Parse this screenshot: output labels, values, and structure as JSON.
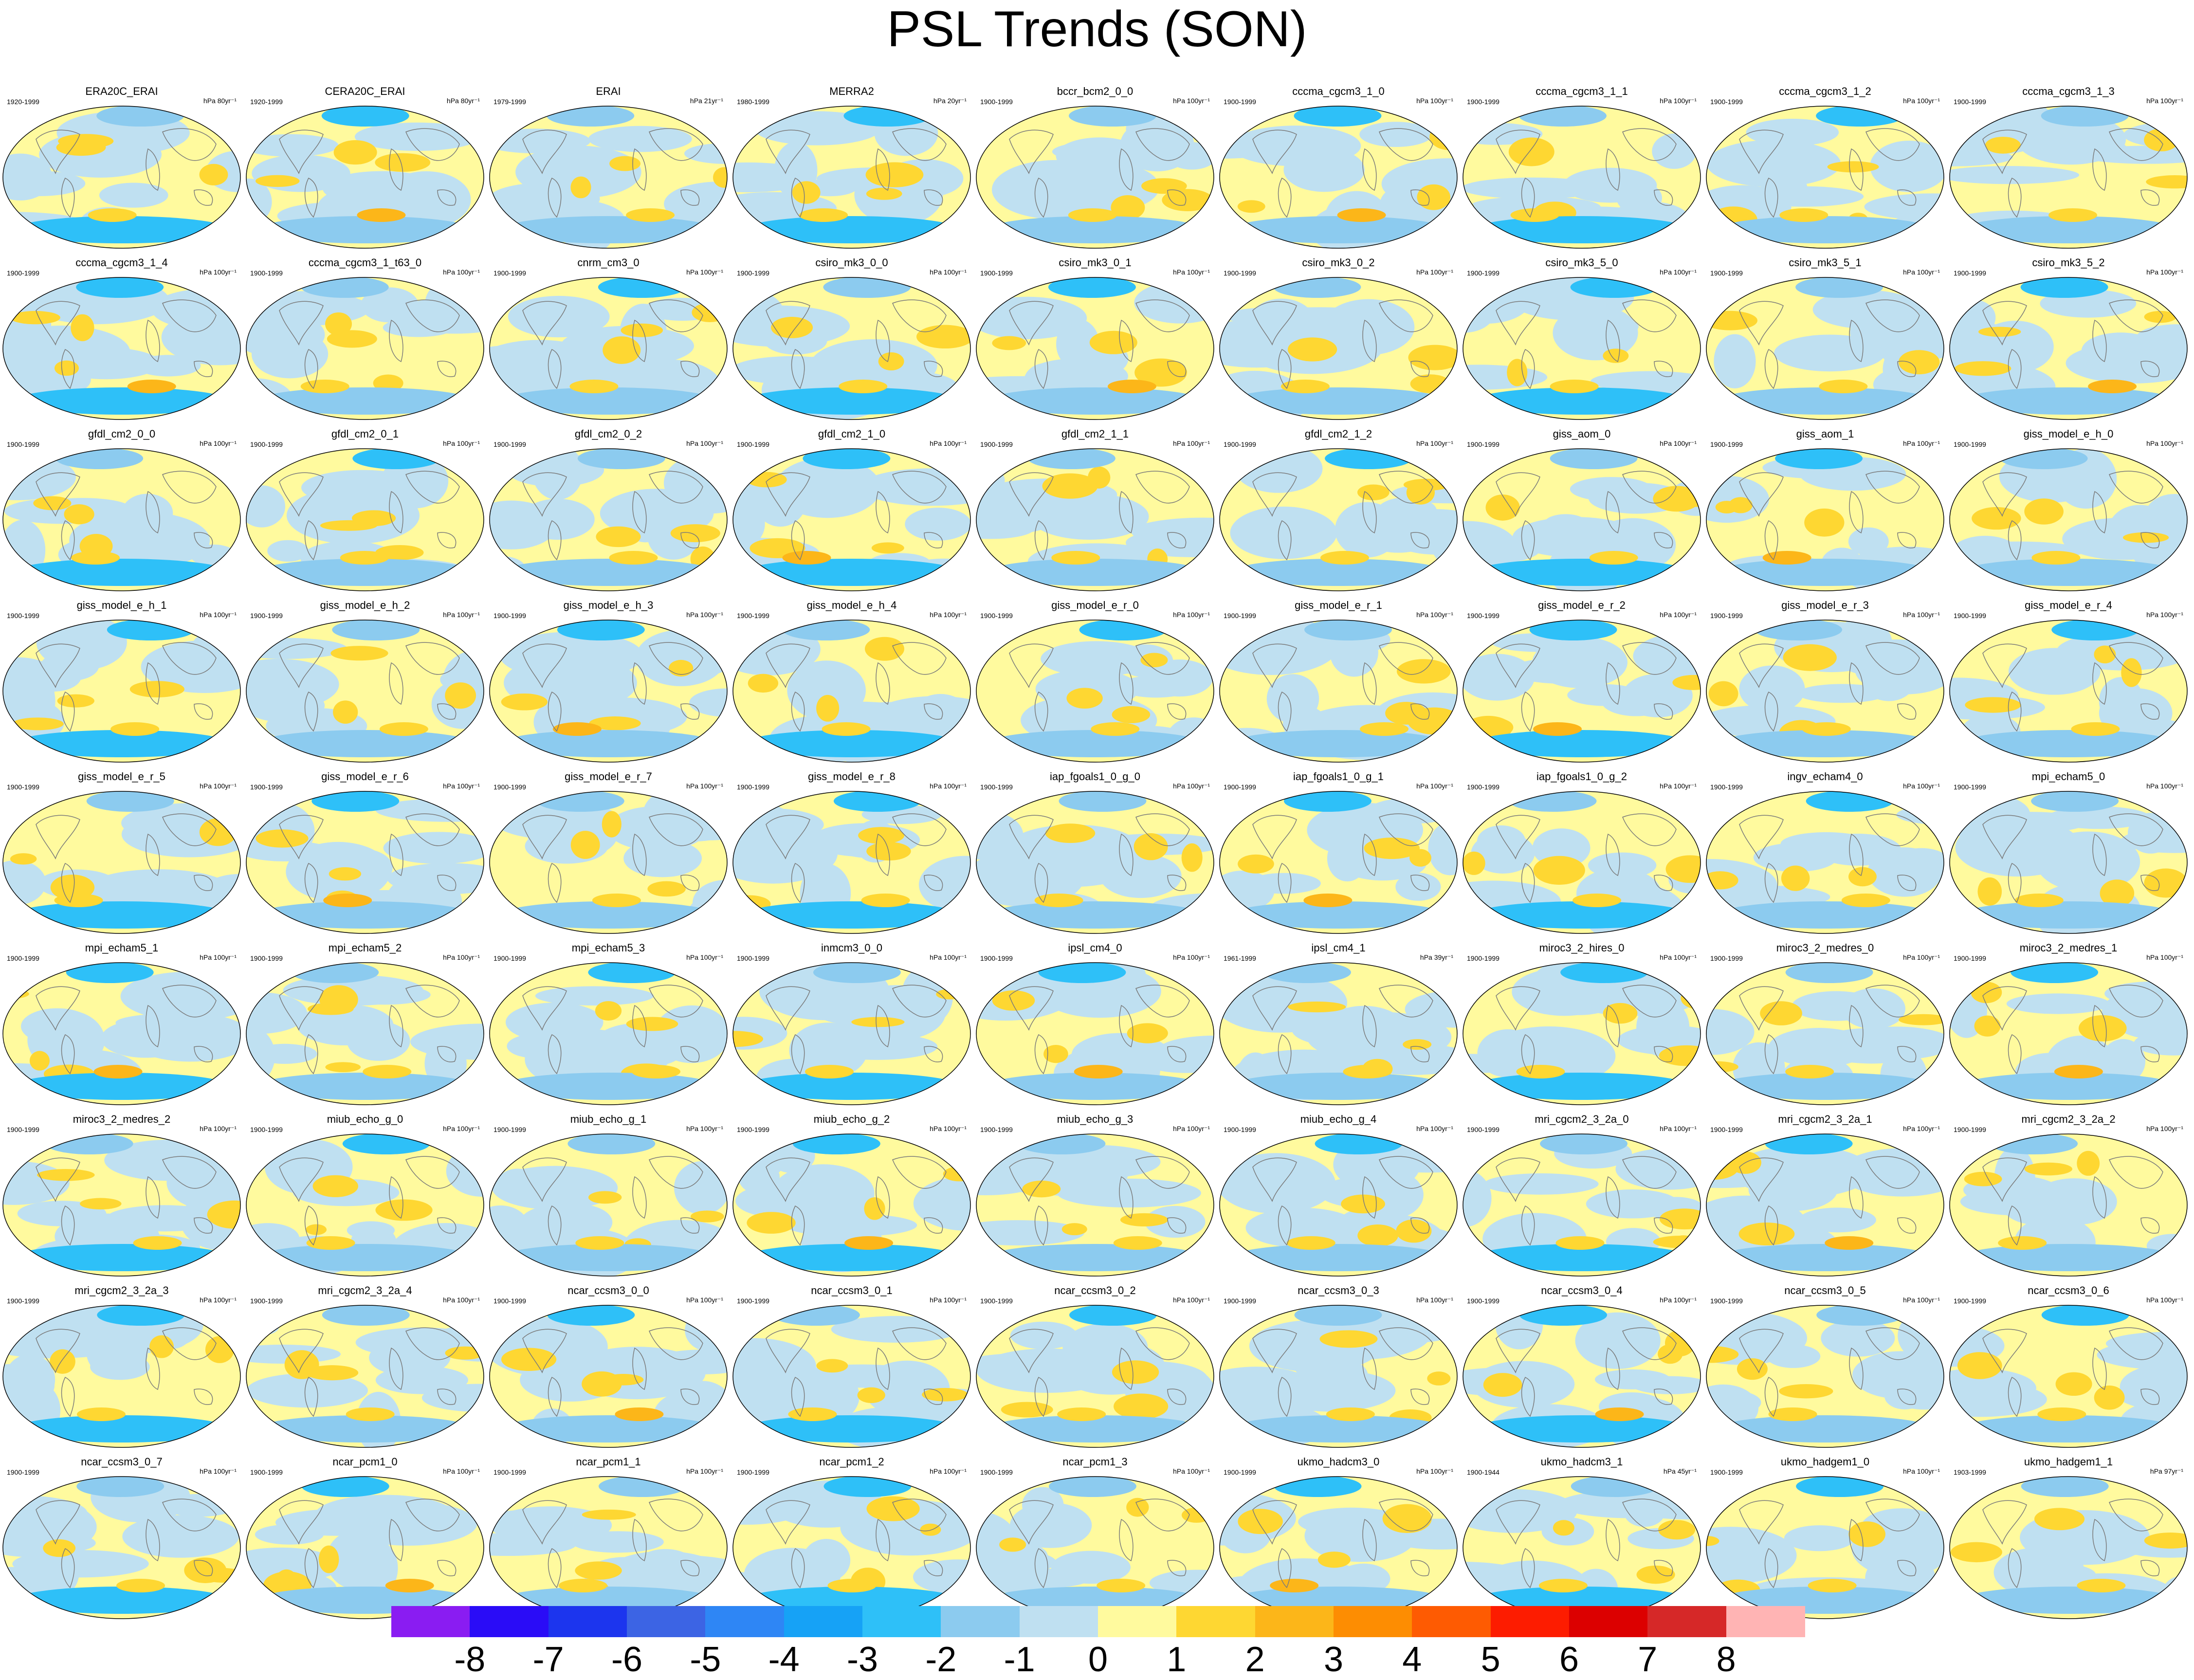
{
  "title": "PSL Trends (SON)",
  "panels": [
    {
      "name": "ERA20C_ERAI",
      "period": "1920-1999",
      "units": "hPa 80yr⁻¹"
    },
    {
      "name": "CERA20C_ERAI",
      "period": "1920-1999",
      "units": "hPa 80yr⁻¹"
    },
    {
      "name": "ERAI",
      "period": "1979-1999",
      "units": "hPa 21yr⁻¹"
    },
    {
      "name": "MERRA2",
      "period": "1980-1999",
      "units": "hPa 20yr⁻¹"
    },
    {
      "name": "bccr_bcm2_0_0",
      "period": "1900-1999",
      "units": "hPa 100yr⁻¹"
    },
    {
      "name": "cccma_cgcm3_1_0",
      "period": "1900-1999",
      "units": "hPa 100yr⁻¹"
    },
    {
      "name": "cccma_cgcm3_1_1",
      "period": "1900-1999",
      "units": "hPa 100yr⁻¹"
    },
    {
      "name": "cccma_cgcm3_1_2",
      "period": "1900-1999",
      "units": "hPa 100yr⁻¹"
    },
    {
      "name": "cccma_cgcm3_1_3",
      "period": "1900-1999",
      "units": "hPa 100yr⁻¹"
    },
    {
      "name": "cccma_cgcm3_1_4",
      "period": "1900-1999",
      "units": "hPa 100yr⁻¹"
    },
    {
      "name": "cccma_cgcm3_1_t63_0",
      "period": "1900-1999",
      "units": "hPa 100yr⁻¹"
    },
    {
      "name": "cnrm_cm3_0",
      "period": "1900-1999",
      "units": "hPa 100yr⁻¹"
    },
    {
      "name": "csiro_mk3_0_0",
      "period": "1900-1999",
      "units": "hPa 100yr⁻¹"
    },
    {
      "name": "csiro_mk3_0_1",
      "period": "1900-1999",
      "units": "hPa 100yr⁻¹"
    },
    {
      "name": "csiro_mk3_0_2",
      "period": "1900-1999",
      "units": "hPa 100yr⁻¹"
    },
    {
      "name": "csiro_mk3_5_0",
      "period": "1900-1999",
      "units": "hPa 100yr⁻¹"
    },
    {
      "name": "csiro_mk3_5_1",
      "period": "1900-1999",
      "units": "hPa 100yr⁻¹"
    },
    {
      "name": "csiro_mk3_5_2",
      "period": "1900-1999",
      "units": "hPa 100yr⁻¹"
    },
    {
      "name": "gfdl_cm2_0_0",
      "period": "1900-1999",
      "units": "hPa 100yr⁻¹"
    },
    {
      "name": "gfdl_cm2_0_1",
      "period": "1900-1999",
      "units": "hPa 100yr⁻¹"
    },
    {
      "name": "gfdl_cm2_0_2",
      "period": "1900-1999",
      "units": "hPa 100yr⁻¹"
    },
    {
      "name": "gfdl_cm2_1_0",
      "period": "1900-1999",
      "units": "hPa 100yr⁻¹"
    },
    {
      "name": "gfdl_cm2_1_1",
      "period": "1900-1999",
      "units": "hPa 100yr⁻¹"
    },
    {
      "name": "gfdl_cm2_1_2",
      "period": "1900-1999",
      "units": "hPa 100yr⁻¹"
    },
    {
      "name": "giss_aom_0",
      "period": "1900-1999",
      "units": "hPa 100yr⁻¹"
    },
    {
      "name": "giss_aom_1",
      "period": "1900-1999",
      "units": "hPa 100yr⁻¹"
    },
    {
      "name": "giss_model_e_h_0",
      "period": "1900-1999",
      "units": "hPa 100yr⁻¹"
    },
    {
      "name": "giss_model_e_h_1",
      "period": "1900-1999",
      "units": "hPa 100yr⁻¹"
    },
    {
      "name": "giss_model_e_h_2",
      "period": "1900-1999",
      "units": "hPa 100yr⁻¹"
    },
    {
      "name": "giss_model_e_h_3",
      "period": "1900-1999",
      "units": "hPa 100yr⁻¹"
    },
    {
      "name": "giss_model_e_h_4",
      "period": "1900-1999",
      "units": "hPa 100yr⁻¹"
    },
    {
      "name": "giss_model_e_r_0",
      "period": "1900-1999",
      "units": "hPa 100yr⁻¹"
    },
    {
      "name": "giss_model_e_r_1",
      "period": "1900-1999",
      "units": "hPa 100yr⁻¹"
    },
    {
      "name": "giss_model_e_r_2",
      "period": "1900-1999",
      "units": "hPa 100yr⁻¹"
    },
    {
      "name": "giss_model_e_r_3",
      "period": "1900-1999",
      "units": "hPa 100yr⁻¹"
    },
    {
      "name": "giss_model_e_r_4",
      "period": "1900-1999",
      "units": "hPa 100yr⁻¹"
    },
    {
      "name": "giss_model_e_r_5",
      "period": "1900-1999",
      "units": "hPa 100yr⁻¹"
    },
    {
      "name": "giss_model_e_r_6",
      "period": "1900-1999",
      "units": "hPa 100yr⁻¹"
    },
    {
      "name": "giss_model_e_r_7",
      "period": "1900-1999",
      "units": "hPa 100yr⁻¹"
    },
    {
      "name": "giss_model_e_r_8",
      "period": "1900-1999",
      "units": "hPa 100yr⁻¹"
    },
    {
      "name": "iap_fgoals1_0_g_0",
      "period": "1900-1999",
      "units": "hPa 100yr⁻¹"
    },
    {
      "name": "iap_fgoals1_0_g_1",
      "period": "1900-1999",
      "units": "hPa 100yr⁻¹"
    },
    {
      "name": "iap_fgoals1_0_g_2",
      "period": "1900-1999",
      "units": "hPa 100yr⁻¹"
    },
    {
      "name": "ingv_echam4_0",
      "period": "1900-1999",
      "units": "hPa 100yr⁻¹"
    },
    {
      "name": "mpi_echam5_0",
      "period": "1900-1999",
      "units": "hPa 100yr⁻¹"
    },
    {
      "name": "mpi_echam5_1",
      "period": "1900-1999",
      "units": "hPa 100yr⁻¹"
    },
    {
      "name": "mpi_echam5_2",
      "period": "1900-1999",
      "units": "hPa 100yr⁻¹"
    },
    {
      "name": "mpi_echam5_3",
      "period": "1900-1999",
      "units": "hPa 100yr⁻¹"
    },
    {
      "name": "inmcm3_0_0",
      "period": "1900-1999",
      "units": "hPa 100yr⁻¹"
    },
    {
      "name": "ipsl_cm4_0",
      "period": "1900-1999",
      "units": "hPa 100yr⁻¹"
    },
    {
      "name": "ipsl_cm4_1",
      "period": "1961-1999",
      "units": "hPa 39yr⁻¹"
    },
    {
      "name": "miroc3_2_hires_0",
      "period": "1900-1999",
      "units": "hPa 100yr⁻¹"
    },
    {
      "name": "miroc3_2_medres_0",
      "period": "1900-1999",
      "units": "hPa 100yr⁻¹"
    },
    {
      "name": "miroc3_2_medres_1",
      "period": "1900-1999",
      "units": "hPa 100yr⁻¹"
    },
    {
      "name": "miroc3_2_medres_2",
      "period": "1900-1999",
      "units": "hPa 100yr⁻¹"
    },
    {
      "name": "miub_echo_g_0",
      "period": "1900-1999",
      "units": "hPa 100yr⁻¹"
    },
    {
      "name": "miub_echo_g_1",
      "period": "1900-1999",
      "units": "hPa 100yr⁻¹"
    },
    {
      "name": "miub_echo_g_2",
      "period": "1900-1999",
      "units": "hPa 100yr⁻¹"
    },
    {
      "name": "miub_echo_g_3",
      "period": "1900-1999",
      "units": "hPa 100yr⁻¹"
    },
    {
      "name": "miub_echo_g_4",
      "period": "1900-1999",
      "units": "hPa 100yr⁻¹"
    },
    {
      "name": "mri_cgcm2_3_2a_0",
      "period": "1900-1999",
      "units": "hPa 100yr⁻¹"
    },
    {
      "name": "mri_cgcm2_3_2a_1",
      "period": "1900-1999",
      "units": "hPa 100yr⁻¹"
    },
    {
      "name": "mri_cgcm2_3_2a_2",
      "period": "1900-1999",
      "units": "hPa 100yr⁻¹"
    },
    {
      "name": "mri_cgcm2_3_2a_3",
      "period": "1900-1999",
      "units": "hPa 100yr⁻¹"
    },
    {
      "name": "mri_cgcm2_3_2a_4",
      "period": "1900-1999",
      "units": "hPa 100yr⁻¹"
    },
    {
      "name": "ncar_ccsm3_0_0",
      "period": "1900-1999",
      "units": "hPa 100yr⁻¹"
    },
    {
      "name": "ncar_ccsm3_0_1",
      "period": "1900-1999",
      "units": "hPa 100yr⁻¹"
    },
    {
      "name": "ncar_ccsm3_0_2",
      "period": "1900-1999",
      "units": "hPa 100yr⁻¹"
    },
    {
      "name": "ncar_ccsm3_0_3",
      "period": "1900-1999",
      "units": "hPa 100yr⁻¹"
    },
    {
      "name": "ncar_ccsm3_0_4",
      "period": "1900-1999",
      "units": "hPa 100yr⁻¹"
    },
    {
      "name": "ncar_ccsm3_0_5",
      "period": "1900-1999",
      "units": "hPa 100yr⁻¹"
    },
    {
      "name": "ncar_ccsm3_0_6",
      "period": "1900-1999",
      "units": "hPa 100yr⁻¹"
    },
    {
      "name": "ncar_ccsm3_0_7",
      "period": "1900-1999",
      "units": "hPa 100yr⁻¹"
    },
    {
      "name": "ncar_pcm1_0",
      "period": "1900-1999",
      "units": "hPa 100yr⁻¹"
    },
    {
      "name": "ncar_pcm1_1",
      "period": "1900-1999",
      "units": "hPa 100yr⁻¹"
    },
    {
      "name": "ncar_pcm1_2",
      "period": "1900-1999",
      "units": "hPa 100yr⁻¹"
    },
    {
      "name": "ncar_pcm1_3",
      "period": "1900-1999",
      "units": "hPa 100yr⁻¹"
    },
    {
      "name": "ukmo_hadcm3_0",
      "period": "1900-1999",
      "units": "hPa 100yr⁻¹"
    },
    {
      "name": "ukmo_hadcm3_1",
      "period": "1900-1944",
      "units": "hPa 45yr⁻¹"
    },
    {
      "name": "ukmo_hadgem1_0",
      "period": "1900-1999",
      "units": "hPa 100yr⁻¹"
    },
    {
      "name": "ukmo_hadgem1_1",
      "period": "1903-1999",
      "units": "hPa 97yr⁻¹"
    }
  ],
  "colorbar": {
    "labels": [
      "-8",
      "-7",
      "-6",
      "-5",
      "-4",
      "-3",
      "-2",
      "-1",
      "0",
      "1",
      "2",
      "3",
      "4",
      "5",
      "6",
      "7",
      "8"
    ],
    "colors": [
      "#8a1cf2",
      "#2a0cf7",
      "#1c35ee",
      "#3c64e4",
      "#2e86f5",
      "#16a2f6",
      "#2ec0f8",
      "#8ccbef",
      "#bfe0f1",
      "#fffa9e",
      "#fed732",
      "#fcb619",
      "#fd8d02",
      "#fe5b02",
      "#fd1c00",
      "#dc0000",
      "#d62828",
      "#ffb4b4"
    ]
  }
}
